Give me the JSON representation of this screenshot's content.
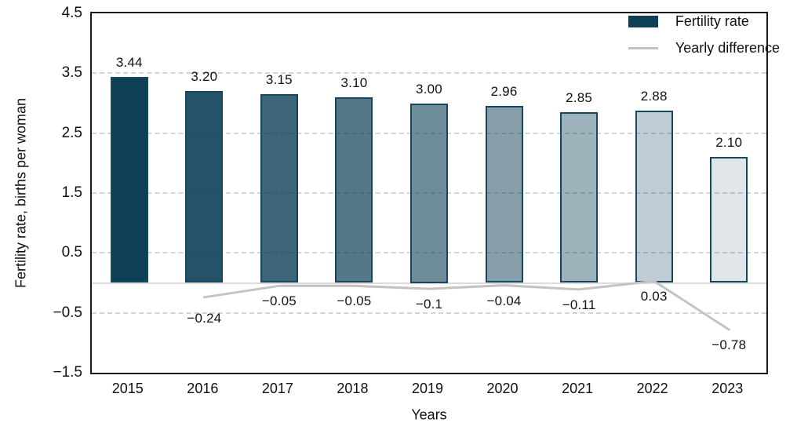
{
  "chart_data": {
    "type": "bar",
    "categories": [
      "2015",
      "2016",
      "2017",
      "2018",
      "2019",
      "2020",
      "2021",
      "2022",
      "2023"
    ],
    "series": [
      {
        "name": "Fertility rate",
        "type": "bar",
        "values": [
          3.44,
          3.2,
          3.15,
          3.1,
          3.0,
          2.96,
          2.85,
          2.88,
          2.1
        ],
        "labels": [
          "3.44",
          "3.20",
          "3.15",
          "3.10",
          "3.00",
          "2.96",
          "2.85",
          "2.88",
          "2.10"
        ]
      },
      {
        "name": "Yearly difference",
        "type": "line",
        "values": [
          null,
          -0.24,
          -0.05,
          -0.05,
          -0.1,
          -0.04,
          -0.11,
          0.03,
          -0.78
        ],
        "labels": [
          null,
          "−0.24",
          "−0.05",
          "−0.05",
          "−0.1",
          "−0.04",
          "−0.11",
          "0.03",
          "−0.78"
        ]
      }
    ],
    "title": "",
    "xlabel": "Years",
    "ylabel": "Fertility rate, births per woman",
    "ylim": [
      -1.5,
      4.5
    ],
    "yticks": [
      4.5,
      3.5,
      2.5,
      1.5,
      0.5,
      -0.5,
      -1.5
    ],
    "ytick_labels": [
      "4.5",
      "3.5",
      "2.5",
      "1.5",
      "0.5",
      "−0.5",
      "−1.5"
    ],
    "grid": true,
    "legend_position": "top-right",
    "colors": {
      "bar_base_rgb": "13,63,87",
      "bar_alphas": [
        1,
        0.9,
        0.8,
        0.7,
        0.6,
        0.5,
        0.4,
        0.26,
        0.13
      ],
      "bar_border": "#15485f",
      "line": "#c3c3c3",
      "grid": "#d4d4d4",
      "zero_line": "#dcdcdc",
      "plot_border": "#1a1a1a",
      "text": "#111111"
    }
  },
  "legend": {
    "items": [
      {
        "label": "Fertility rate",
        "swatch": "bar-swatch"
      },
      {
        "label": "Yearly difference",
        "swatch": "line-swatch"
      }
    ]
  }
}
